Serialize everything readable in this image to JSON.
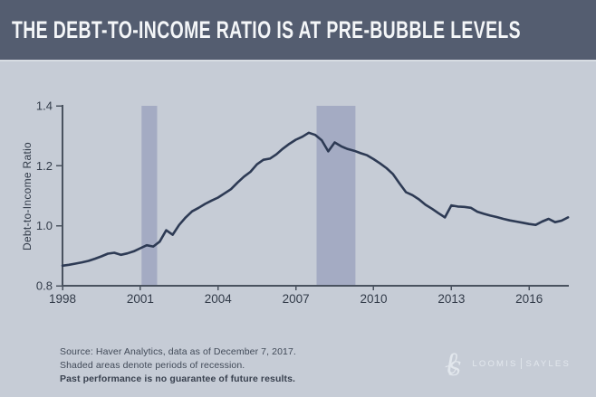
{
  "header": {
    "title": "THE DEBT-TO-INCOME RATIO IS AT PRE-BUBBLE LEVELS"
  },
  "chart_data": {
    "type": "line",
    "title": "THE DEBT-TO-INCOME RATIO IS AT PRE-BUBBLE LEVELS",
    "xlabel": "",
    "ylabel": "Debt-to-Income Ratio",
    "x_unit": "year (quarterly series)",
    "x_start": 1998,
    "x_step_years": 0.25,
    "values": [
      0.867,
      0.87,
      0.874,
      0.878,
      0.883,
      0.89,
      0.898,
      0.907,
      0.91,
      0.903,
      0.908,
      0.915,
      0.925,
      0.935,
      0.931,
      0.947,
      0.985,
      0.97,
      1.003,
      1.028,
      1.048,
      1.06,
      1.073,
      1.084,
      1.094,
      1.108,
      1.122,
      1.144,
      1.164,
      1.18,
      1.205,
      1.22,
      1.224,
      1.238,
      1.257,
      1.273,
      1.287,
      1.297,
      1.31,
      1.303,
      1.285,
      1.248,
      1.278,
      1.265,
      1.256,
      1.25,
      1.242,
      1.235,
      1.222,
      1.208,
      1.192,
      1.172,
      1.141,
      1.112,
      1.102,
      1.088,
      1.07,
      1.057,
      1.042,
      1.028,
      1.068,
      1.064,
      1.063,
      1.06,
      1.047,
      1.04,
      1.034,
      1.029,
      1.023,
      1.018,
      1.014,
      1.01,
      1.006,
      1.003,
      1.014,
      1.023,
      1.012,
      1.017,
      1.028
    ],
    "x_ticks": [
      1998,
      2001,
      2004,
      2007,
      2010,
      2013,
      2016
    ],
    "y_ticks": [
      0.8,
      1.0,
      1.2,
      1.4
    ],
    "xlim": [
      1998,
      2017.53
    ],
    "ylim": [
      0.8,
      1.4
    ],
    "grid": false,
    "legend": "none",
    "recession_bands_years": [
      [
        2001.05,
        2001.65
      ],
      [
        2007.8,
        2009.3
      ]
    ],
    "line_color": "#2d3a54",
    "band_color": "#a4abc3"
  },
  "footnote": {
    "line1": "Source: Haver Analytics, data as of December 7, 2017.",
    "line2": "Shaded areas denote periods of recession.",
    "line3": "Past performance is no guarantee of future results."
  },
  "logo": {
    "monogram_l": "ℓ",
    "monogram_s": "S",
    "left": "LOOMIS",
    "right": "SAYLES"
  },
  "colors": {
    "header_bg": "#545d70",
    "header_text": "#f4f6f8",
    "page_bg": "#c6ccd6",
    "axis": "#49525f",
    "tick_text": "#323b49",
    "footnote_text": "#414a58",
    "logo_text": "#e2e7ed"
  }
}
